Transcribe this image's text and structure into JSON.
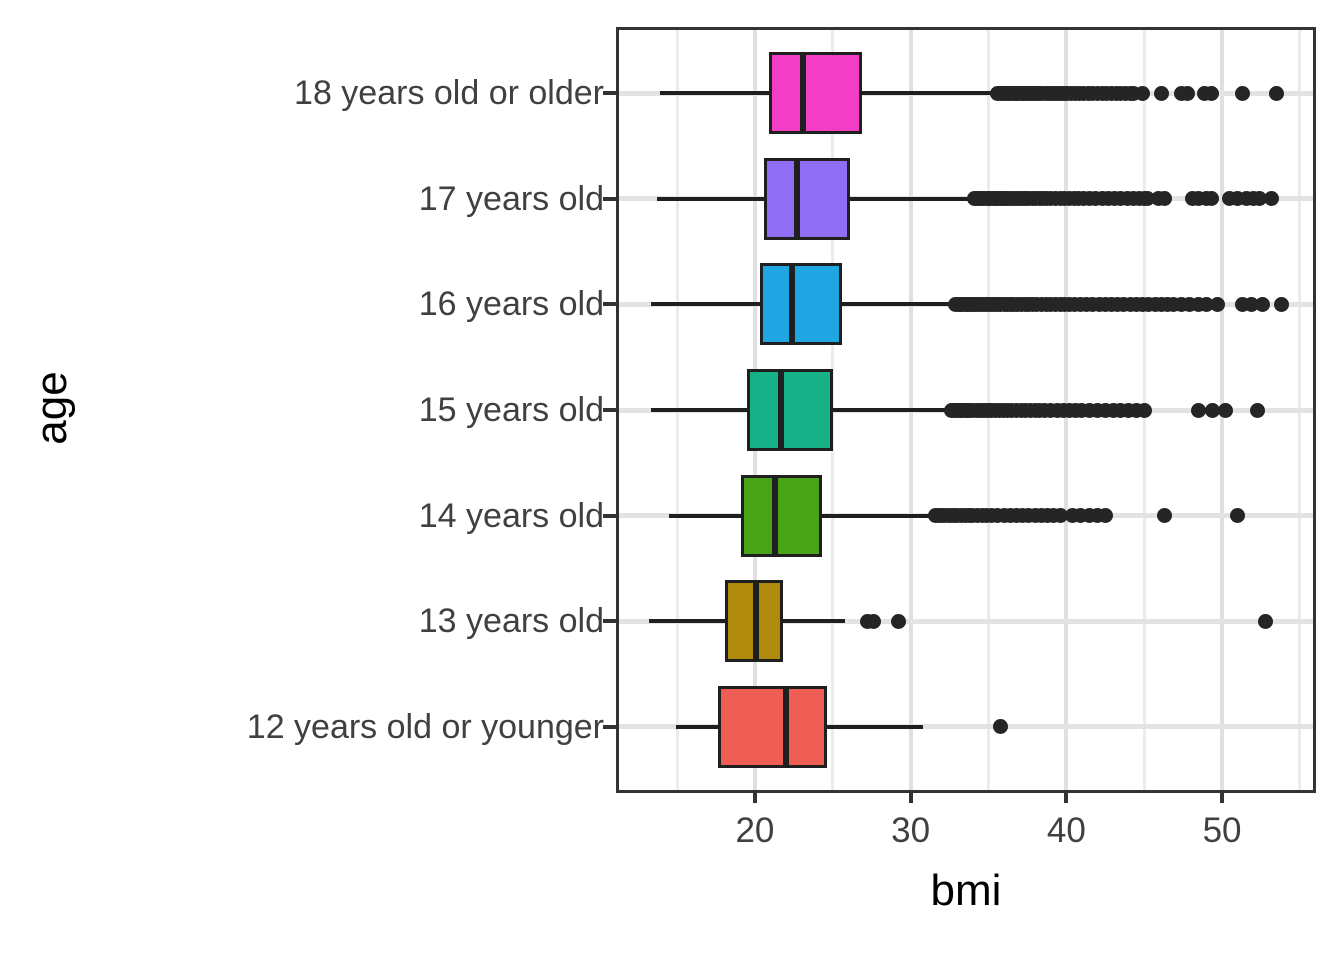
{
  "chart_data": {
    "type": "boxplot",
    "orientation": "horizontal",
    "xlabel": "bmi",
    "ylabel": "age",
    "x_range": [
      11.27,
      55.84
    ],
    "x_major_ticks": [
      20,
      30,
      40,
      50
    ],
    "x_major_tick_labels": [
      "20",
      "30",
      "40",
      "50"
    ],
    "x_minor_gridlines": [
      15,
      25,
      35,
      45,
      55
    ],
    "grid": true,
    "legend": "none",
    "categories": [
      "18 years old or older",
      "17 years old",
      "16 years old",
      "15 years old",
      "14 years old",
      "13 years old",
      "12 years old or younger"
    ],
    "boxes": [
      {
        "label": "18 years old or older",
        "color": "#f23ec7",
        "whisker_low": 13.9,
        "q1": 20.9,
        "median": 23.1,
        "q3": 26.9,
        "whisker_high": 35.5,
        "outliers": [
          35.6,
          35.75,
          35.9,
          36.05,
          36.2,
          36.35,
          36.5,
          36.65,
          36.8,
          36.95,
          37.1,
          37.25,
          37.4,
          37.55,
          37.7,
          37.85,
          38.0,
          38.15,
          38.3,
          38.5,
          38.7,
          38.9,
          39.1,
          39.3,
          39.5,
          39.7,
          39.9,
          40.1,
          40.35,
          40.6,
          40.85,
          41.1,
          41.4,
          41.7,
          42.0,
          42.3,
          42.6,
          42.9,
          43.2,
          43.5,
          43.8,
          44.1,
          44.3,
          44.9,
          46.1,
          47.4,
          47.8,
          48.9,
          49.3,
          51.3,
          53.5
        ]
      },
      {
        "label": "17 years old",
        "color": "#8f6ef4",
        "whisker_low": 13.7,
        "q1": 20.6,
        "median": 22.7,
        "q3": 26.1,
        "whisker_high": 34.0,
        "outliers": [
          34.1,
          34.25,
          34.4,
          34.55,
          34.7,
          34.85,
          35.0,
          35.15,
          35.3,
          35.45,
          35.6,
          35.75,
          35.9,
          36.05,
          36.2,
          36.4,
          36.6,
          36.8,
          37.0,
          37.2,
          37.4,
          37.6,
          37.8,
          38.0,
          38.25,
          38.5,
          38.75,
          39.0,
          39.3,
          39.6,
          39.9,
          40.2,
          40.5,
          40.8,
          41.1,
          41.5,
          41.9,
          42.3,
          42.7,
          43.1,
          43.5,
          43.9,
          44.3,
          44.7,
          45.0,
          45.2,
          45.9,
          46.3,
          48.1,
          48.5,
          49.0,
          49.3,
          50.5,
          51.0,
          51.6,
          52.0,
          52.4,
          53.2
        ]
      },
      {
        "label": "16 years old",
        "color": "#1fa5e2",
        "whisker_low": 13.3,
        "q1": 20.3,
        "median": 22.4,
        "q3": 25.6,
        "whisker_high": 32.8,
        "outliers": [
          32.9,
          33.05,
          33.2,
          33.35,
          33.5,
          33.65,
          33.8,
          33.95,
          34.1,
          34.25,
          34.4,
          34.6,
          34.8,
          35.0,
          35.2,
          35.4,
          35.6,
          35.8,
          36.0,
          36.2,
          36.4,
          36.6,
          36.85,
          37.1,
          37.35,
          37.6,
          37.85,
          38.1,
          38.4,
          38.7,
          39.0,
          39.3,
          39.6,
          39.9,
          40.2,
          40.5,
          40.9,
          41.3,
          41.7,
          42.1,
          42.5,
          42.9,
          43.3,
          43.7,
          44.1,
          44.5,
          44.9,
          45.3,
          45.7,
          46.1,
          46.5,
          46.9,
          47.4,
          47.9,
          48.5,
          49.0,
          49.7,
          51.3,
          51.9,
          52.6,
          53.8
        ]
      },
      {
        "label": "15 years old",
        "color": "#16b186",
        "whisker_low": 13.3,
        "q1": 19.5,
        "median": 21.7,
        "q3": 25.0,
        "whisker_high": 32.5,
        "outliers": [
          32.6,
          32.75,
          32.9,
          33.05,
          33.2,
          33.35,
          33.5,
          33.65,
          33.8,
          34.0,
          34.2,
          34.4,
          34.6,
          34.8,
          35.0,
          35.2,
          35.45,
          35.7,
          35.95,
          36.2,
          36.5,
          36.8,
          37.1,
          37.4,
          37.7,
          38.0,
          38.3,
          38.6,
          39.0,
          39.4,
          39.8,
          40.2,
          40.6,
          41.0,
          41.5,
          42.0,
          42.5,
          43.0,
          43.5,
          44.0,
          44.5,
          45.0,
          48.5,
          49.4,
          50.2,
          52.3
        ]
      },
      {
        "label": "14 years old",
        "color": "#48a316",
        "whisker_low": 14.5,
        "q1": 19.1,
        "median": 21.3,
        "q3": 24.3,
        "whisker_high": 31.5,
        "outliers": [
          31.6,
          31.8,
          32.0,
          32.2,
          32.4,
          32.6,
          32.8,
          33.0,
          33.25,
          33.5,
          33.75,
          34.0,
          34.3,
          34.6,
          34.9,
          35.2,
          35.6,
          36.0,
          36.4,
          36.8,
          37.2,
          37.6,
          38.0,
          38.4,
          38.8,
          39.2,
          39.6,
          40.4,
          40.9,
          41.5,
          42.0,
          42.5,
          46.3,
          51.0
        ]
      },
      {
        "label": "13 years old",
        "color": "#b08a0d",
        "whisker_low": 13.2,
        "q1": 18.1,
        "median": 20.1,
        "q3": 21.8,
        "whisker_high": 25.8,
        "outliers": [
          27.2,
          27.6,
          29.2,
          52.8
        ]
      },
      {
        "label": "12 years old or younger",
        "color": "#ef5e55",
        "whisker_low": 14.9,
        "q1": 17.6,
        "median": 22.0,
        "q3": 24.6,
        "whisker_high": 30.8,
        "outliers": [
          35.8
        ]
      }
    ]
  },
  "colors": {
    "panel_background": "#ffffff",
    "panel_border": "#333333",
    "grid_major": "#e0e0e0",
    "grid_minor": "#ebebeb",
    "box_stroke": "#1f1f1f",
    "outlier_dot": "#252525",
    "axis_text": "#404040",
    "axis_title": "#000000"
  }
}
